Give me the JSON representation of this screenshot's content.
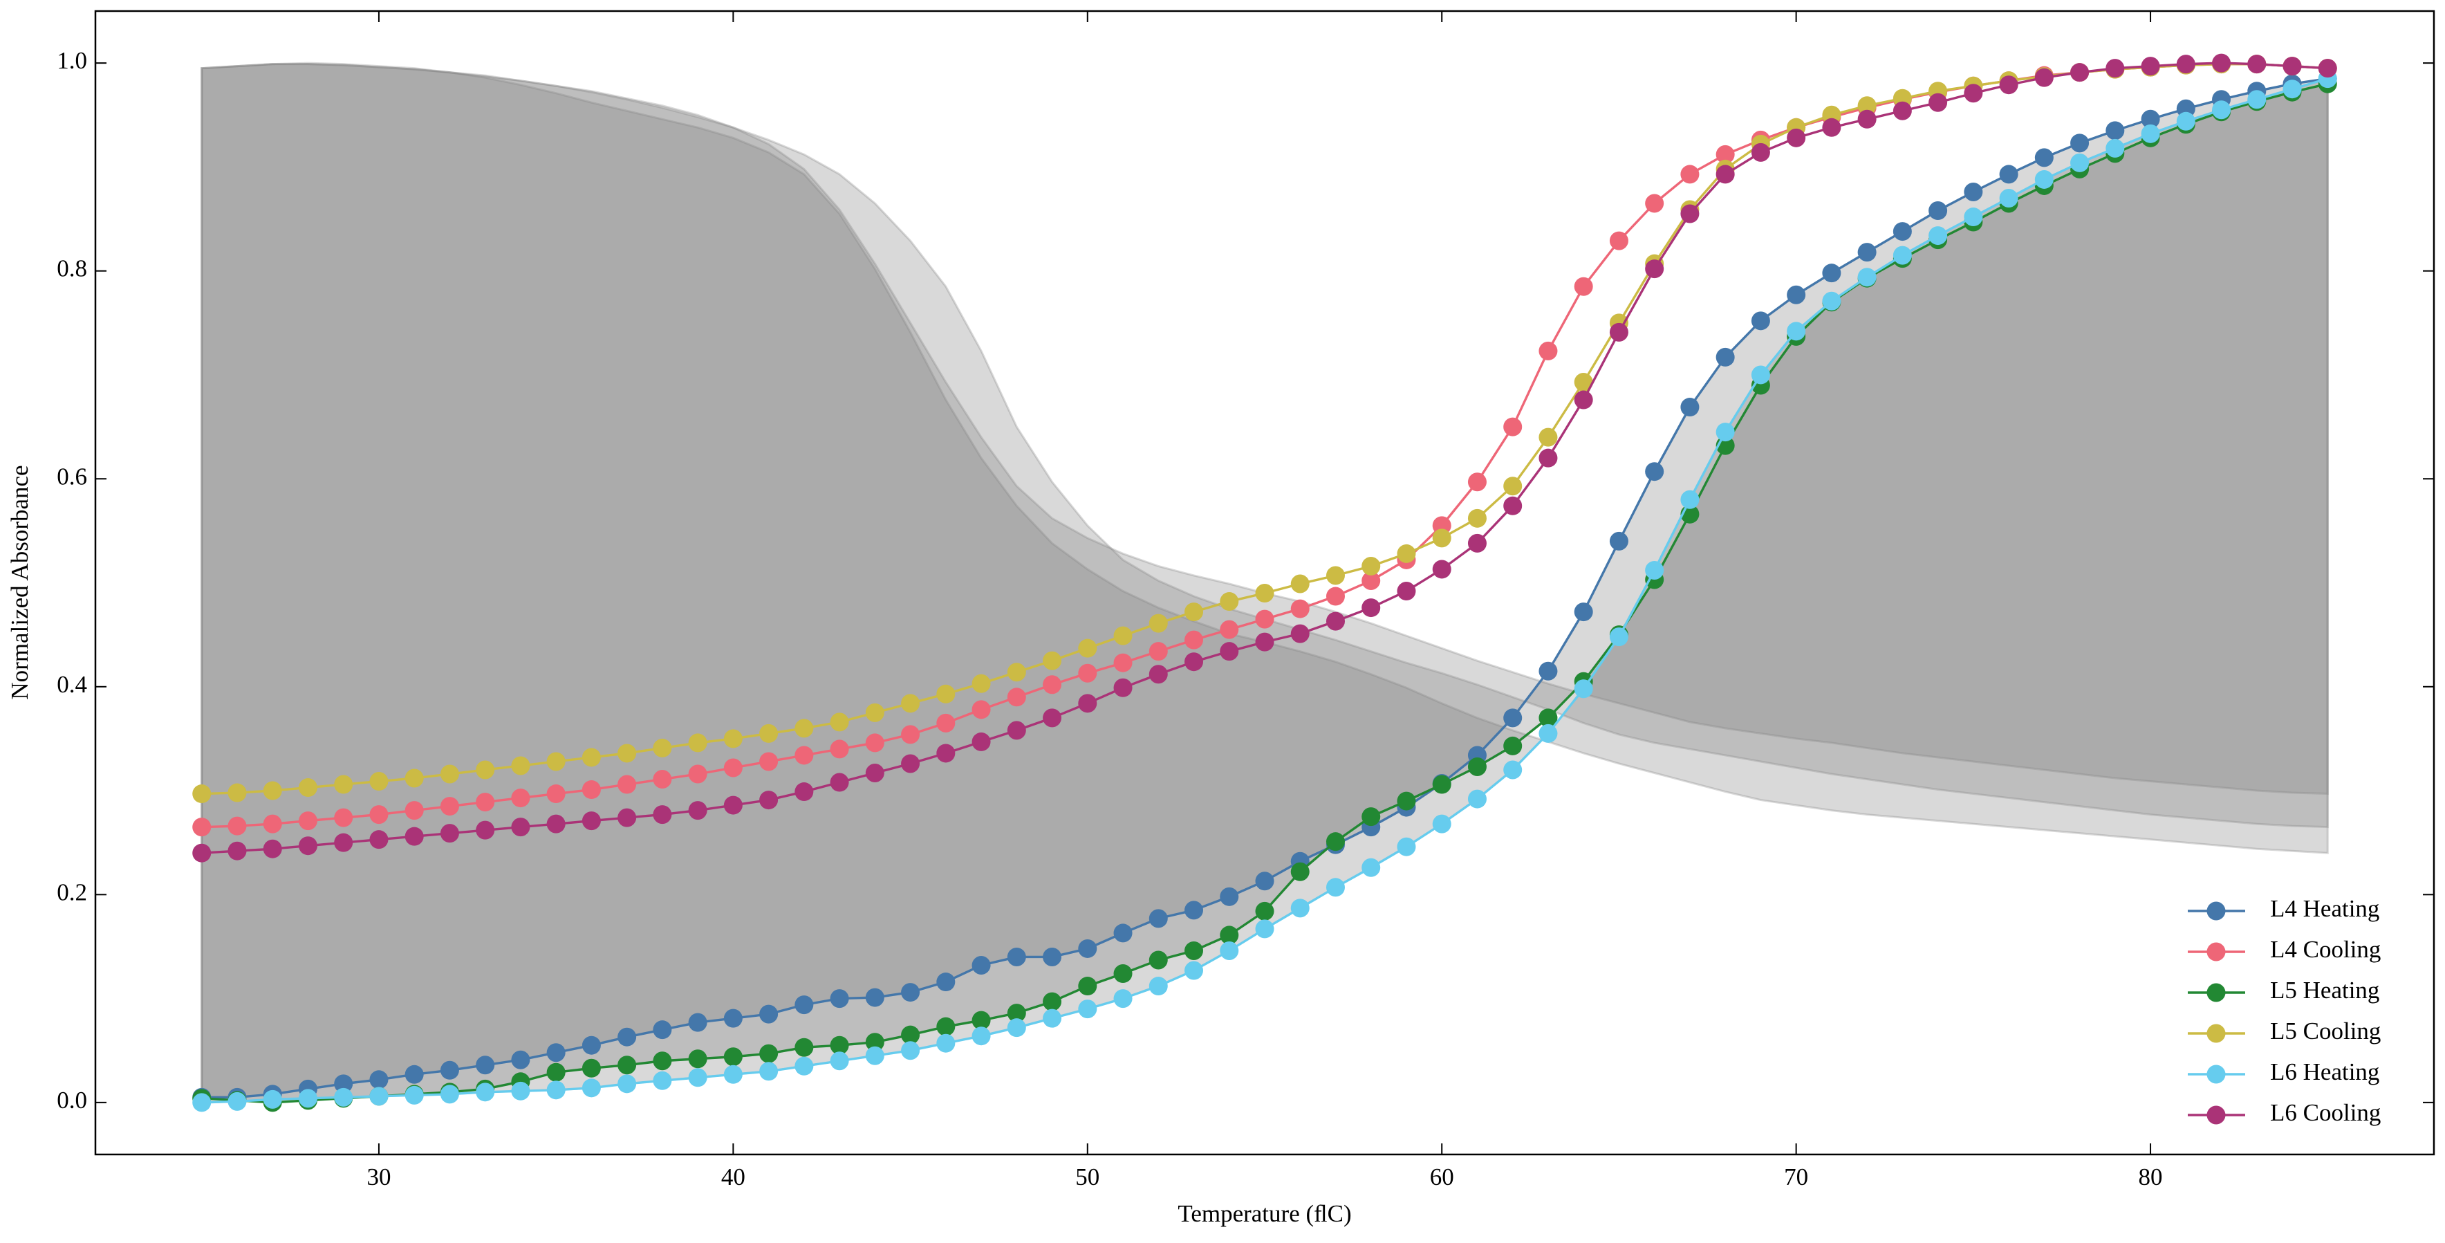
{
  "chart_data": {
    "type": "line",
    "x_label": "Temperature (ﬂC)",
    "y_label": "Normalized Absorbance",
    "x": [
      25,
      26,
      27,
      28,
      29,
      30,
      31,
      32,
      33,
      34,
      35,
      36,
      37,
      38,
      39,
      40,
      41,
      42,
      43,
      44,
      45,
      46,
      47,
      48,
      49,
      50,
      51,
      52,
      53,
      54,
      55,
      56,
      57,
      58,
      59,
      60,
      61,
      62,
      63,
      64,
      65,
      66,
      67,
      68,
      69,
      70,
      71,
      72,
      73,
      74,
      75,
      76,
      77,
      78,
      79,
      80,
      81,
      82,
      83,
      84,
      85
    ],
    "series": [
      {
        "name": "L4 Heating",
        "color": "#4477aa",
        "values": [
          0.005,
          0.005,
          0.008,
          0.013,
          0.018,
          0.022,
          0.027,
          0.031,
          0.036,
          0.041,
          0.048,
          0.055,
          0.063,
          0.07,
          0.077,
          0.081,
          0.085,
          0.094,
          0.1,
          0.101,
          0.106,
          0.116,
          0.132,
          0.14,
          0.14,
          0.148,
          0.163,
          0.177,
          0.185,
          0.198,
          0.213,
          0.232,
          0.248,
          0.265,
          0.284,
          0.307,
          0.334,
          0.37,
          0.415,
          0.472,
          0.54,
          0.607,
          0.669,
          0.717,
          0.752,
          0.777,
          0.798,
          0.818,
          0.838,
          0.858,
          0.876,
          0.893,
          0.909,
          0.923,
          0.935,
          0.946,
          0.956,
          0.965,
          0.973,
          0.98,
          0.985
        ]
      },
      {
        "name": "L4 Cooling",
        "color": "#ee6677",
        "values": [
          0.265,
          0.266,
          0.268,
          0.271,
          0.274,
          0.277,
          0.281,
          0.285,
          0.289,
          0.293,
          0.297,
          0.301,
          0.306,
          0.311,
          0.316,
          0.322,
          0.328,
          0.334,
          0.34,
          0.346,
          0.354,
          0.365,
          0.378,
          0.39,
          0.402,
          0.413,
          0.423,
          0.434,
          0.445,
          0.455,
          0.465,
          0.475,
          0.487,
          0.502,
          0.522,
          0.555,
          0.597,
          0.65,
          0.723,
          0.785,
          0.829,
          0.865,
          0.893,
          0.912,
          0.926,
          0.938,
          0.948,
          0.957,
          0.965,
          0.972,
          0.978,
          0.983,
          0.988,
          0.991,
          0.994,
          0.996,
          0.998,
          0.999,
          0.999,
          0.997,
          0.995
        ]
      },
      {
        "name": "L5 Heating",
        "color": "#228833",
        "values": [
          0.004,
          0.002,
          0.0,
          0.002,
          0.004,
          0.006,
          0.008,
          0.01,
          0.013,
          0.02,
          0.029,
          0.033,
          0.036,
          0.04,
          0.042,
          0.044,
          0.047,
          0.053,
          0.055,
          0.058,
          0.065,
          0.073,
          0.079,
          0.086,
          0.097,
          0.112,
          0.124,
          0.137,
          0.146,
          0.161,
          0.184,
          0.222,
          0.251,
          0.275,
          0.29,
          0.306,
          0.323,
          0.343,
          0.37,
          0.405,
          0.45,
          0.503,
          0.566,
          0.632,
          0.69,
          0.737,
          0.77,
          0.793,
          0.812,
          0.83,
          0.847,
          0.865,
          0.882,
          0.898,
          0.913,
          0.928,
          0.941,
          0.953,
          0.963,
          0.972,
          0.98
        ]
      },
      {
        "name": "L5 Cooling",
        "color": "#ccbb44",
        "values": [
          0.297,
          0.298,
          0.3,
          0.303,
          0.306,
          0.309,
          0.312,
          0.316,
          0.32,
          0.324,
          0.328,
          0.332,
          0.336,
          0.341,
          0.346,
          0.35,
          0.355,
          0.36,
          0.366,
          0.375,
          0.384,
          0.393,
          0.403,
          0.414,
          0.425,
          0.437,
          0.449,
          0.461,
          0.472,
          0.482,
          0.49,
          0.499,
          0.507,
          0.516,
          0.528,
          0.543,
          0.562,
          0.593,
          0.64,
          0.693,
          0.75,
          0.807,
          0.859,
          0.898,
          0.922,
          0.938,
          0.95,
          0.959,
          0.966,
          0.973,
          0.978,
          0.983,
          0.987,
          0.991,
          0.994,
          0.996,
          0.998,
          0.999,
          0.999,
          0.997,
          0.995
        ]
      },
      {
        "name": "L6 Heating",
        "color": "#66ccee",
        "values": [
          0.0,
          0.001,
          0.003,
          0.004,
          0.005,
          0.006,
          0.007,
          0.008,
          0.01,
          0.011,
          0.012,
          0.014,
          0.018,
          0.021,
          0.024,
          0.027,
          0.03,
          0.035,
          0.04,
          0.045,
          0.05,
          0.057,
          0.064,
          0.072,
          0.081,
          0.09,
          0.1,
          0.112,
          0.127,
          0.146,
          0.167,
          0.187,
          0.207,
          0.226,
          0.246,
          0.268,
          0.292,
          0.32,
          0.355,
          0.398,
          0.448,
          0.512,
          0.58,
          0.645,
          0.7,
          0.742,
          0.771,
          0.794,
          0.815,
          0.834,
          0.852,
          0.87,
          0.888,
          0.904,
          0.918,
          0.932,
          0.944,
          0.955,
          0.965,
          0.975,
          0.985
        ]
      },
      {
        "name": "L6 Cooling",
        "color": "#aa3377",
        "values": [
          0.24,
          0.242,
          0.244,
          0.247,
          0.25,
          0.253,
          0.256,
          0.259,
          0.262,
          0.265,
          0.268,
          0.271,
          0.274,
          0.277,
          0.281,
          0.286,
          0.291,
          0.299,
          0.308,
          0.317,
          0.326,
          0.336,
          0.347,
          0.358,
          0.37,
          0.384,
          0.399,
          0.412,
          0.424,
          0.434,
          0.443,
          0.451,
          0.463,
          0.476,
          0.492,
          0.513,
          0.538,
          0.574,
          0.62,
          0.676,
          0.741,
          0.802,
          0.855,
          0.893,
          0.914,
          0.928,
          0.938,
          0.946,
          0.954,
          0.962,
          0.971,
          0.979,
          0.986,
          0.991,
          0.995,
          0.997,
          0.999,
          1.0,
          0.999,
          0.997,
          0.995
        ]
      }
    ],
    "xlim": [
      22,
      88
    ],
    "ylim": [
      -0.05,
      1.05
    ],
    "xticks": [
      30,
      40,
      50,
      60,
      70,
      80
    ],
    "yticks": [
      {
        "value": 0,
        "label": "0.0"
      },
      0.2,
      0.4,
      0.6,
      0.8,
      {
        "value": 1,
        "label": "1.0"
      }
    ],
    "legend": "lower right",
    "fill_color": "#808080"
  }
}
